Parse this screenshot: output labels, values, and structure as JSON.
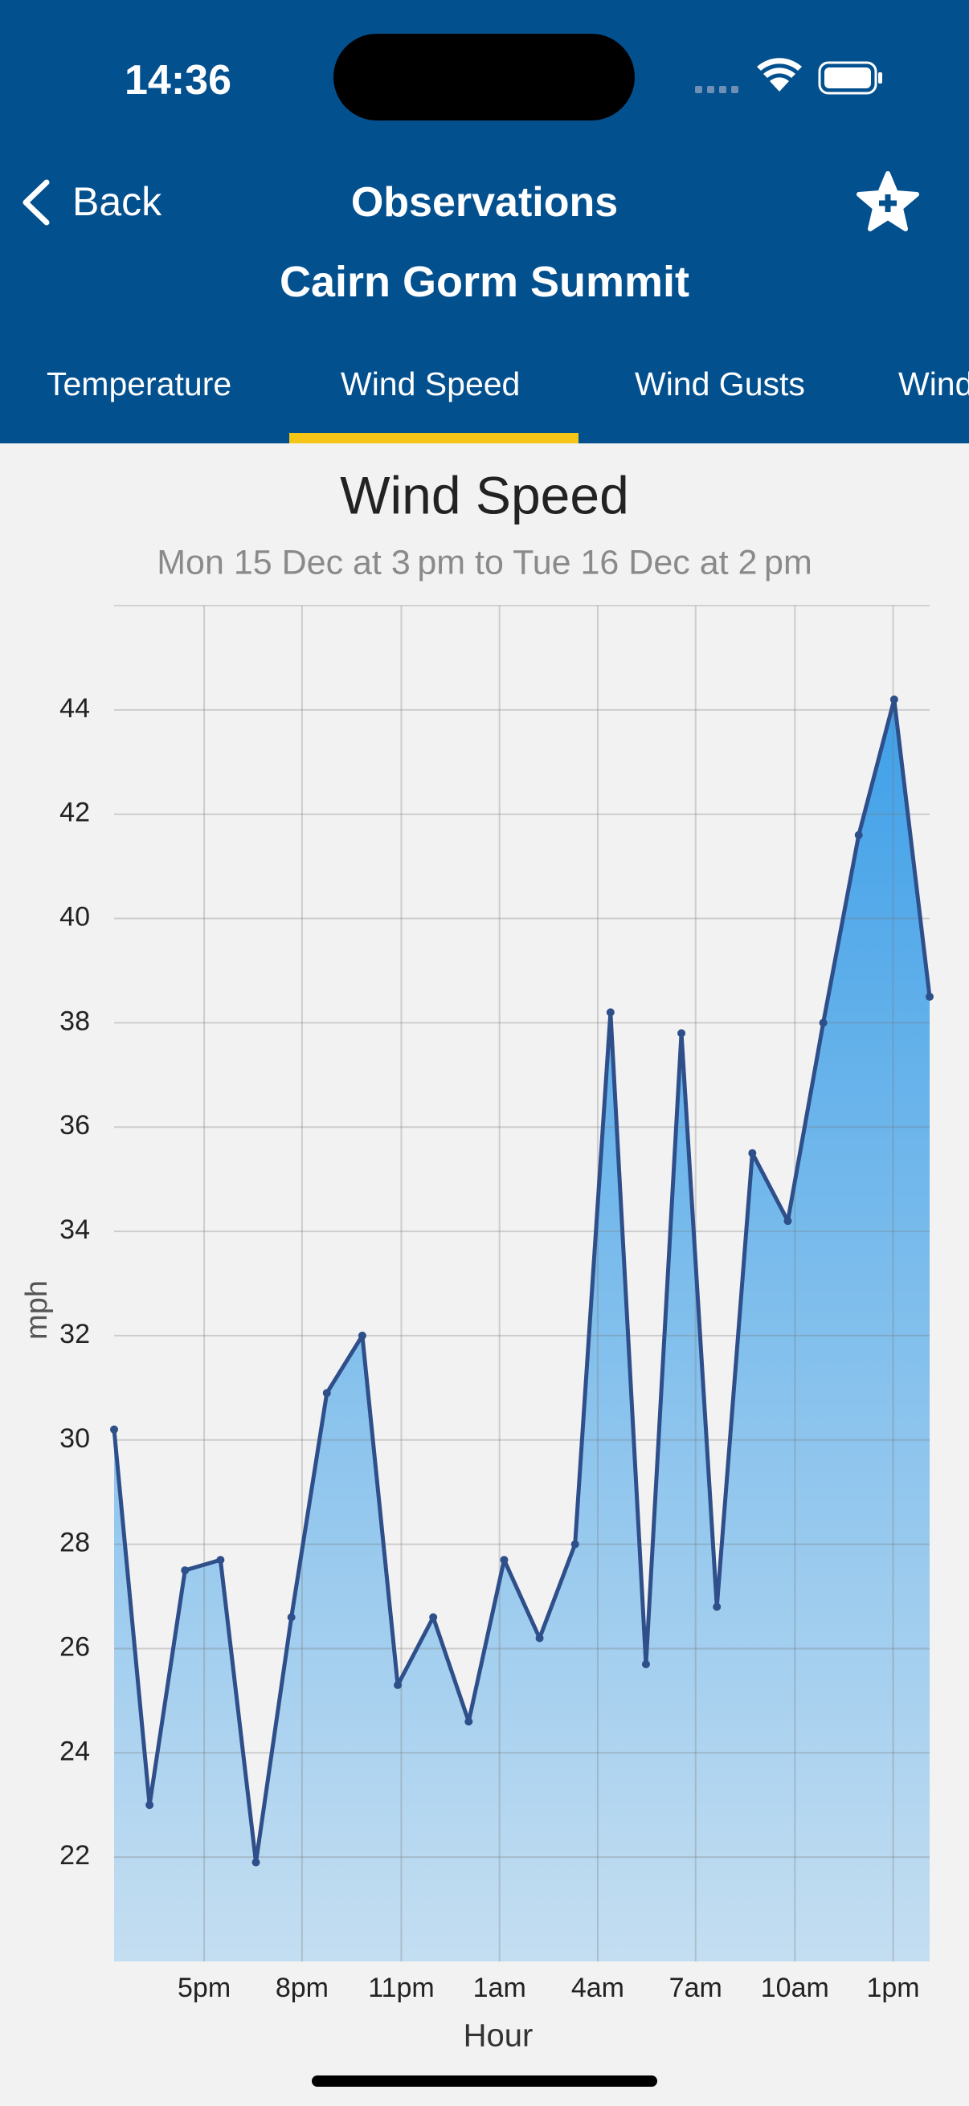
{
  "status_bar": {
    "time": "14:36"
  },
  "header": {
    "back": "Back",
    "title": "Observations",
    "subtitle": "Cairn Gorm Summit"
  },
  "tabs": [
    "Temperature",
    "Wind Speed",
    "Wind Gusts",
    "Wind Direction"
  ],
  "chart_data": {
    "type": "area",
    "title": "Wind Speed",
    "subtitle": "Mon 15 Dec at 3 pm to Tue 16 Dec at 2 pm",
    "x_label": "Hour",
    "y_label": "mph",
    "x": [
      0,
      1,
      2,
      3,
      4,
      5,
      6,
      7,
      8,
      9,
      10,
      11,
      12,
      13,
      14,
      15,
      16,
      17,
      18,
      19,
      20,
      21,
      22,
      23
    ],
    "series": [
      {
        "name": "Wind Speed",
        "color": "#2f4f8a",
        "values": [
          30.2,
          23.0,
          27.5,
          27.7,
          21.9,
          26.6,
          30.9,
          32.0,
          25.3,
          26.6,
          24.6,
          27.7,
          26.2,
          28.0,
          38.2,
          25.7,
          37.8,
          26.8,
          35.5,
          34.2,
          38.0,
          41.6,
          44.2,
          38.5
        ]
      }
    ],
    "fill_colors": [
      "#3fa0e8",
      "#c4def1"
    ],
    "xlim": [
      0,
      23
    ],
    "xticks": [
      {
        "value": 2.54,
        "label": "5pm"
      },
      {
        "value": 5.3,
        "label": "8pm"
      },
      {
        "value": 8.1,
        "label": "11pm"
      },
      {
        "value": 10.87,
        "label": "1am"
      },
      {
        "value": 13.64,
        "label": "4am"
      },
      {
        "value": 16.4,
        "label": "7am"
      },
      {
        "value": 19.2,
        "label": "10am"
      },
      {
        "value": 21.97,
        "label": "1pm"
      }
    ],
    "ylim": [
      20,
      46
    ],
    "yticks": [
      22,
      24,
      26,
      28,
      30,
      32,
      34,
      36,
      38,
      40,
      42,
      44
    ],
    "grid": true
  }
}
